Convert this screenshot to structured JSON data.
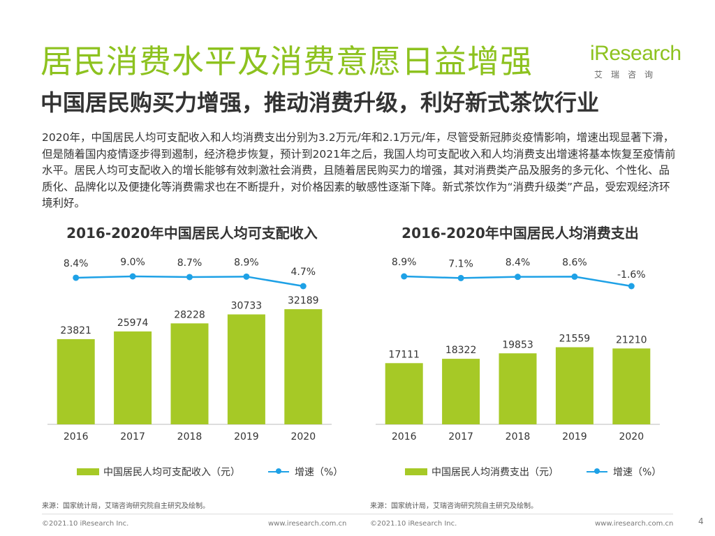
{
  "header": {
    "title": "居民消费水平及消费意愿日益增强",
    "subtitle": "中国居民购买力增强，推动消费升级，利好新式茶饮行业"
  },
  "logo": {
    "main": "iResearch",
    "sub": "艾瑞咨询"
  },
  "intro": "2020年，中国居民人均可支配收入和人均消费支出分别为3.2万元/年和2.1万元/年，尽管受新冠肺炎疫情影响，增速出现显著下滑，但是随着国内疫情逐步得到遏制，经济稳步恢复，预计到2021年之后，我国人均可支配收入和人均消费支出增速将基本恢复至疫情前水平。居民人均可支配收入的增长能够有效刺激社会消费，且随着居民购买力的增强，其对消费类产品及服务的多元化、个性化、品质化、品牌化以及便捷化等消费需求也在不断提升，对价格因素的敏感性逐渐下降。新式茶饮作为“消费升级类”产品，受宏观经济环境利好。",
  "colors": {
    "accent": "#8dc21f",
    "bar": "#a6c926",
    "line": "#1ea1e6"
  },
  "chart_data": [
    {
      "type": "bar",
      "title": "2016-2020年中国居民人均可支配收入",
      "categories": [
        "2016",
        "2017",
        "2018",
        "2019",
        "2020"
      ],
      "series": [
        {
          "name": "中国居民人均可支配收入（元）",
          "type": "bar",
          "values": [
            23821,
            25974,
            28228,
            30733,
            32189
          ]
        },
        {
          "name": "增速（%）",
          "type": "line",
          "values": [
            8.4,
            9.0,
            8.7,
            8.9,
            4.7
          ],
          "labels": [
            "8.4%",
            "9.0%",
            "8.7%",
            "8.9%",
            "4.7%"
          ]
        }
      ],
      "legend": {
        "bar": "中国居民人均可支配收入（元）",
        "line": "增速（%）"
      }
    },
    {
      "type": "bar",
      "title": "2016-2020年中国居民人均消费支出",
      "categories": [
        "2016",
        "2017",
        "2018",
        "2019",
        "2020"
      ],
      "series": [
        {
          "name": "中国居民人均消费支出（元）",
          "type": "bar",
          "values": [
            17111,
            18322,
            19853,
            21559,
            21210
          ]
        },
        {
          "name": "增速（%）",
          "type": "line",
          "values": [
            8.9,
            7.1,
            8.4,
            8.6,
            -1.6
          ],
          "labels": [
            "8.9%",
            "7.1%",
            "8.4%",
            "8.6%",
            "-1.6%"
          ]
        }
      ],
      "legend": {
        "bar": "中国居民人均消费支出（元）",
        "line": "增速（%）"
      }
    }
  ],
  "sources": [
    "来源：国家统计局，艾瑞咨询研究院自主研究及绘制。",
    "来源：国家统计局，艾瑞咨询研究院自主研究及绘制。"
  ],
  "footer": {
    "copyright": "©2021.10 iResearch Inc.",
    "url": "www.iresearch.com.cn",
    "page": "4"
  }
}
